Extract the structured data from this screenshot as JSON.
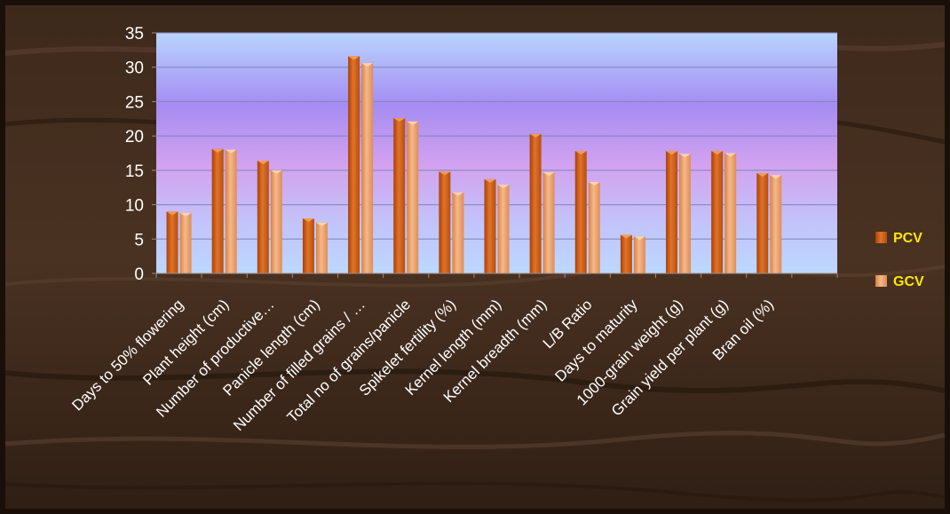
{
  "chart_data": {
    "type": "bar",
    "categories": [
      "Days to 50% flowering",
      "Plant height (cm)",
      "Number of productive…",
      "Panicle length (cm)",
      "Number of filled grains / …",
      "Total no of grains/panicle",
      "Spikelet fertility (%)",
      "Kernel length (mm)",
      "Kernel breadth (mm)",
      "L/B Ratio",
      "Days to maturity",
      "1000-grain weight (g)",
      "Grain yield per plant (g)",
      "Bran oil (%)"
    ],
    "series": [
      {
        "name": "PCV",
        "values": [
          9.0,
          18.1,
          16.4,
          8.0,
          31.6,
          22.6,
          14.8,
          13.7,
          20.3,
          17.8,
          5.6,
          17.8,
          17.8,
          14.6
        ]
      },
      {
        "name": "GCV",
        "values": [
          8.8,
          18.0,
          15.0,
          7.4,
          30.6,
          22.1,
          11.8,
          12.9,
          14.7,
          13.3,
          5.4,
          17.4,
          17.5,
          14.3
        ]
      }
    ],
    "ylim": [
      0,
      35
    ],
    "yticks": [
      0,
      5,
      10,
      15,
      20,
      25,
      30,
      35
    ],
    "grid": true,
    "legend_position": "right",
    "colors": {
      "PCV": "#d9661e",
      "GCV": "#f0a06a",
      "legend_text": "#ffe800",
      "axis_text": "#ffffff"
    }
  }
}
